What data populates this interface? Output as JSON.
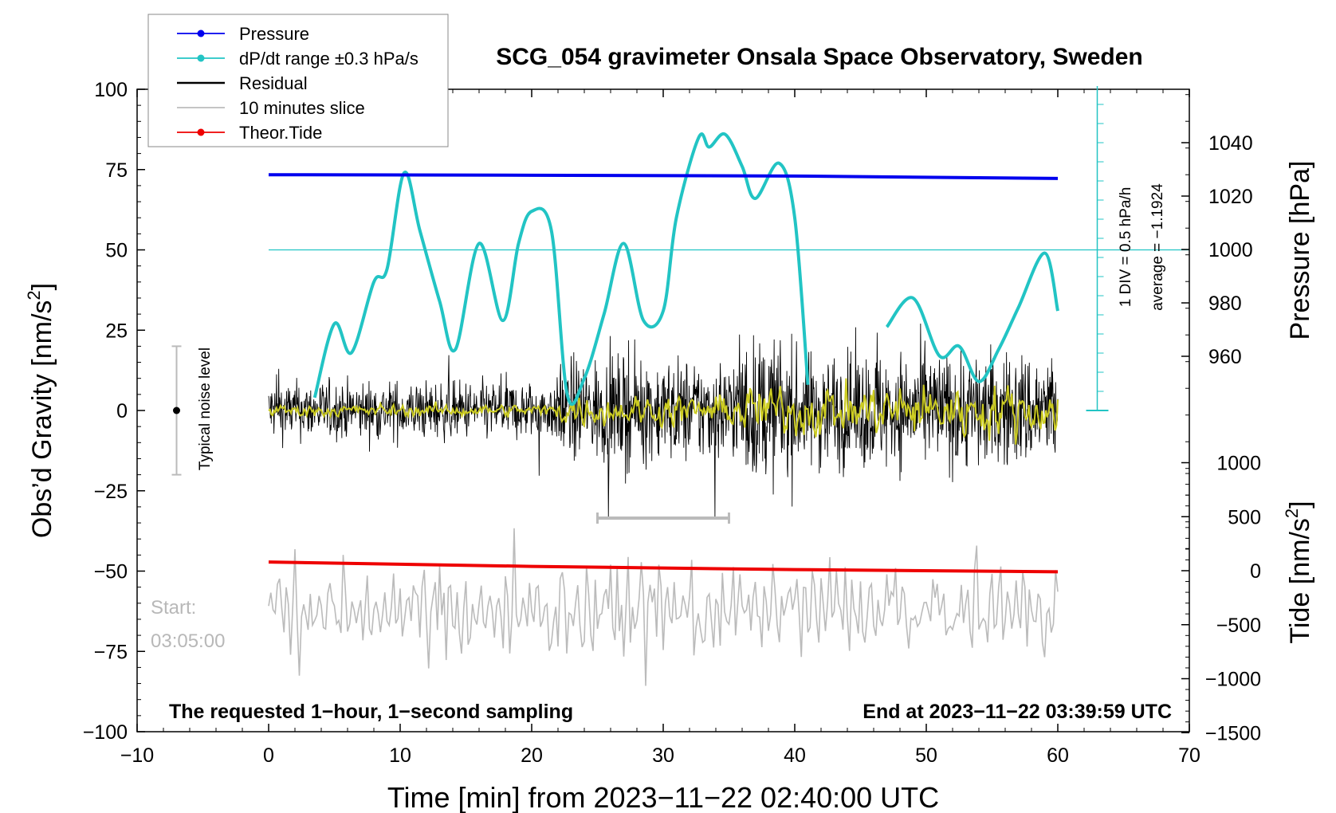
{
  "chart_data": {
    "type": "line",
    "title": "SCG_054 gravimeter Onsala Space Observatory, Sweden",
    "xlabel": "Time [min] from 2023−11−22 02:40:00 UTC",
    "ylabel_left": "Obs’d Gravity [nm/s",
    "ylabel_left_sup": "2",
    "ylabel_left_close": "]",
    "ylabel_pressure": "Pressure [hPa]",
    "ylabel_tide": "Tide [nm/s",
    "ylabel_tide_sup": "2",
    "ylabel_tide_close": "]",
    "xlim": [
      -10,
      70
    ],
    "ylim": [
      -100,
      100
    ],
    "x_ticks": [
      -10,
      0,
      10,
      20,
      30,
      40,
      50,
      60,
      70
    ],
    "x_tick_labels": [
      "−10",
      "0",
      "10",
      "20",
      "30",
      "40",
      "50",
      "60",
      "70"
    ],
    "y_ticks": [
      -100,
      -75,
      -50,
      -25,
      0,
      25,
      50,
      75,
      100
    ],
    "y_tick_labels": [
      "−100",
      "−75",
      "−50",
      "−25",
      "0",
      "25",
      "50",
      "75",
      "100"
    ],
    "pressure_ticks": [
      960,
      980,
      1000,
      1020,
      1040
    ],
    "pressure_range": [
      888,
      1068
    ],
    "tide_ticks": [
      -1500,
      -1000,
      -500,
      0,
      500,
      1000
    ],
    "tide_tick_labels": [
      "−1500",
      "−1000",
      "−500",
      "0",
      "500",
      "1000"
    ],
    "tide_range": [
      -1500,
      1000
    ],
    "legend": [
      {
        "label": "Pressure",
        "color": "#0000ee",
        "marker": true
      },
      {
        "label": "dP/dt range ±0.3 hPa/s",
        "color": "#22c4c4",
        "marker": true
      },
      {
        "label": "Residual",
        "color": "#000000",
        "marker": false
      },
      {
        "label": "10 minutes slice",
        "color": "#bbbbbb",
        "marker": false
      },
      {
        "label": "Theor.Tide",
        "color": "#ee0000",
        "marker": true
      }
    ],
    "legend_position": "top-left",
    "pressure_series": {
      "x": [
        0,
        20,
        40,
        60
      ],
      "y": [
        1028,
        1027.8,
        1027.5,
        1026.6
      ]
    },
    "tide_series": {
      "x": [
        0,
        20,
        40,
        60
      ],
      "y": [
        80,
        40,
        10,
        -10
      ]
    },
    "dpdt_series": {
      "x": [
        3.5,
        5,
        6.3,
        8,
        9,
        10.3,
        11.5,
        13,
        14.2,
        16,
        17.8,
        19,
        20,
        21.5,
        22.7,
        24,
        25.5,
        27,
        28.5,
        30,
        31,
        32.7,
        33.5,
        34.7,
        36,
        37,
        38.8,
        40,
        41
      ],
      "y": [
        4,
        27,
        18,
        40,
        44,
        74,
        56,
        34,
        19,
        52,
        28,
        52,
        62,
        56,
        5,
        10,
        30,
        52,
        28,
        31,
        60,
        85,
        82,
        86,
        76,
        66,
        77,
        60,
        8
      ],
      "x2": [
        47,
        49,
        51,
        52.5,
        54,
        55.5,
        57,
        59,
        60
      ],
      "y2": [
        26,
        35,
        17,
        20,
        9,
        19,
        32,
        49,
        31
      ]
    },
    "dpdt_reference_level": 50,
    "dpdt_scale_label": "1 DIV = 0.5 hPa/h",
    "dpdt_average_label": "average = −1.1924",
    "noise_bar_label": "Typical noise level",
    "noise_bar_range": [
      -20,
      20
    ],
    "slice_bracket_x": [
      25,
      35
    ],
    "start_label_line1": "Start:",
    "start_label_line2": "03:05:00",
    "footer_left": "The requested 1−hour, 1−second sampling",
    "footer_right": "End at 2023−11−22 03:39:59 UTC",
    "colors": {
      "pressure": "#0000ee",
      "dpdt": "#22c4c4",
      "residual": "#000000",
      "smooth": "#cccc22",
      "slice": "#bbbbbb",
      "tide": "#ee0000",
      "noise_bar": "#bbbbbb"
    }
  }
}
